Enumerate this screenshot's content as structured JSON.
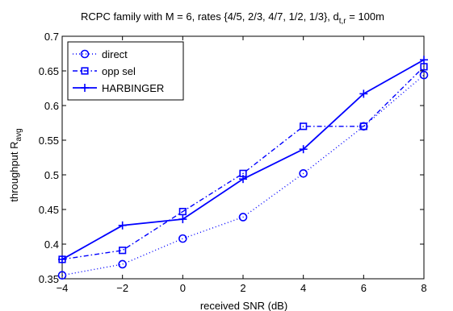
{
  "chart_data": {
    "type": "line",
    "title_main": "RCPC family with M = 6, rates {4/5, 2/3, 4/7, 1/2, 1/3}, d",
    "title_sub": "t,r",
    "title_tail": " = 100m",
    "xlabel": "received SNR (dB)",
    "ylabel_main": "throughput R",
    "ylabel_sub": "avg",
    "xlim": [
      -4,
      8
    ],
    "ylim": [
      0.35,
      0.7
    ],
    "xticks": [
      -4,
      -2,
      0,
      2,
      4,
      6,
      8
    ],
    "yticks": [
      0.35,
      0.4,
      0.45,
      0.5,
      0.55,
      0.6,
      0.65,
      0.7
    ],
    "xtick_labels": [
      "−4",
      "−2",
      "0",
      "2",
      "4",
      "6",
      "8"
    ],
    "ytick_labels": [
      "0.35",
      "0.4",
      "0.45",
      "0.5",
      "0.55",
      "0.6",
      "0.65",
      "0.7"
    ],
    "x": [
      -4,
      -2,
      0,
      2,
      4,
      6,
      8
    ],
    "legend_position": "top-left",
    "grid": false,
    "series": [
      {
        "name": "direct",
        "values": [
          0.355,
          0.371,
          0.408,
          0.439,
          0.502,
          0.57,
          0.644
        ],
        "color": "#0000ff",
        "line_style": "dotted",
        "marker": "circle"
      },
      {
        "name": "opp sel",
        "values": [
          0.378,
          0.391,
          0.447,
          0.502,
          0.57,
          0.57,
          0.656
        ],
        "color": "#0000ff",
        "line_style": "dashdot",
        "marker": "square"
      },
      {
        "name": "HARBINGER",
        "values": [
          0.378,
          0.427,
          0.436,
          0.494,
          0.537,
          0.617,
          0.666
        ],
        "color": "#0000ff",
        "line_style": "solid",
        "marker": "plus"
      }
    ]
  }
}
